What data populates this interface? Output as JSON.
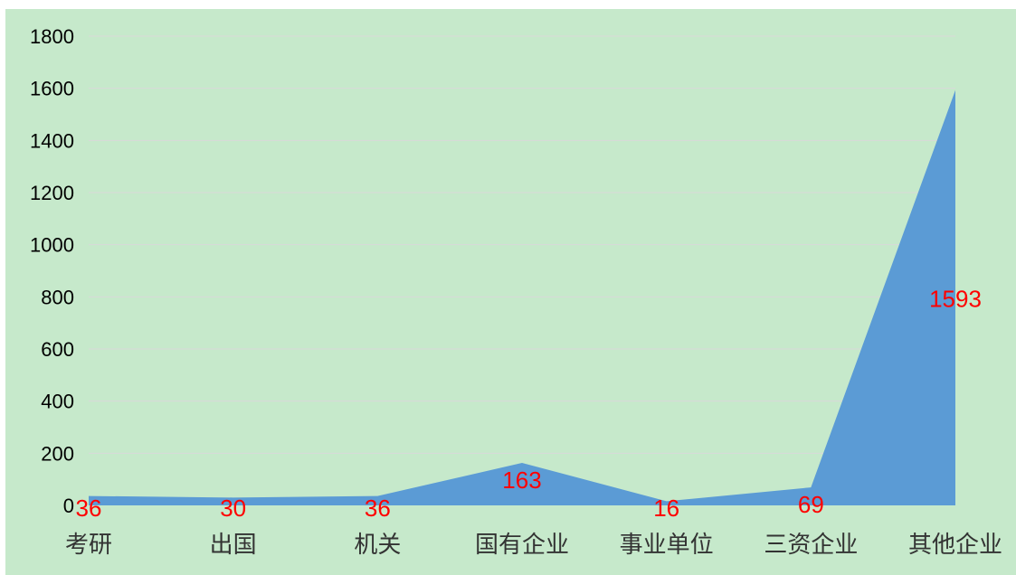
{
  "chart_data": {
    "type": "area",
    "title": "",
    "xlabel": "",
    "ylabel": "",
    "categories": [
      "考研",
      "出国",
      "机关",
      "国有企业",
      "事业单位",
      "三资企业",
      "其他企业"
    ],
    "values": [
      36,
      30,
      36,
      163,
      16,
      69,
      1593
    ],
    "ylim": [
      0,
      1800
    ],
    "yticks": [
      0,
      200,
      400,
      600,
      800,
      1000,
      1200,
      1400,
      1600,
      1800
    ],
    "grid": true,
    "legend": "none",
    "colors": {
      "background": "#c6e9cb",
      "area": "#5b9bd5",
      "gridline": "#d9d9d9",
      "data_label": "#ff0000"
    }
  }
}
